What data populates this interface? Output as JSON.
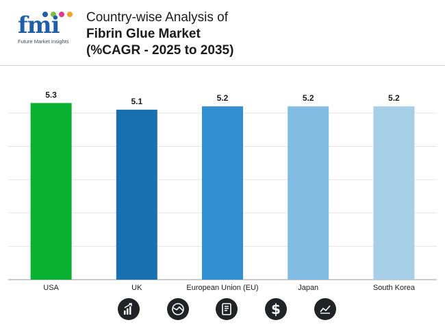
{
  "brand": {
    "logo_text": "fmi",
    "tagline": "Future Market Insights",
    "dot_colors": [
      "#1f5fa9",
      "#7fc241",
      "#e23a8e",
      "#f4a623"
    ]
  },
  "title": {
    "line1": "Country-wise Analysis of",
    "line2": "Fibrin Glue Market",
    "line3": "(%CAGR - 2025 to 2035)"
  },
  "chart_data": {
    "type": "bar",
    "categories": [
      "USA",
      "UK",
      "European Union (EU)",
      "Japan",
      "South Korea"
    ],
    "values": [
      5.3,
      5.1,
      5.2,
      5.2,
      5.2
    ],
    "value_labels": [
      "5.3",
      "5.1",
      "5.2",
      "5.2",
      "5.2"
    ],
    "colors": [
      "#0bb133",
      "#1a6fae",
      "#2f8fd0",
      "#83bde4",
      "#a7d0e8"
    ],
    "ylim": [
      0,
      5.8
    ],
    "grid": true,
    "legend": "none"
  },
  "footer_icons": [
    "bar-chart-growth-icon",
    "globe-analysis-icon",
    "report-document-icon",
    "dollar-icon",
    "trend-line-icon"
  ]
}
